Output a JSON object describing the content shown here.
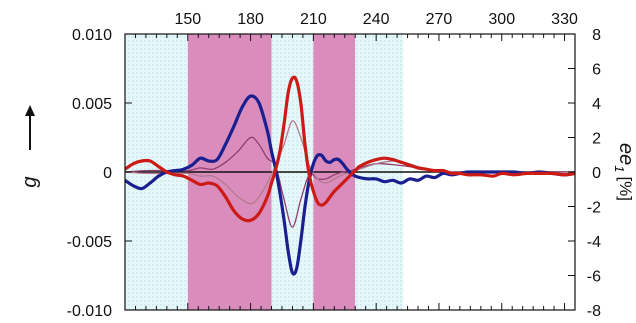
{
  "chart_data": {
    "type": "line",
    "x_axis": {
      "range": [
        120,
        335
      ],
      "ticks": [
        150,
        180,
        210,
        240,
        270,
        300,
        330
      ],
      "tick_labels": [
        "150",
        "180",
        "210",
        "240",
        "270",
        "300",
        "330"
      ],
      "position": "top"
    },
    "y_left": {
      "label": "g",
      "range": [
        -0.01,
        0.01
      ],
      "ticks": [
        -0.01,
        -0.005,
        0,
        0.005,
        0.01
      ],
      "tick_labels": [
        "-0.010",
        "-0.005",
        "0",
        "0.005",
        "0.010"
      ]
    },
    "y_right": {
      "label_main": "ee",
      "label_sub": "1",
      "label_unit": "[%]",
      "range": [
        -8,
        8
      ],
      "ticks": [
        -8,
        -6,
        -4,
        -2,
        0,
        2,
        4,
        6,
        8
      ],
      "tick_labels": [
        "-8",
        "-6",
        "-4",
        "-2",
        "0",
        "2",
        "4",
        "6",
        "8"
      ]
    },
    "shaded_regions": [
      {
        "from": 120,
        "to": 150,
        "color": "#e6f7fa",
        "pattern": "dots"
      },
      {
        "from": 150,
        "to": 190,
        "color": "#da8cbc",
        "pattern": "none"
      },
      {
        "from": 190,
        "to": 210,
        "color": "#e6f7fa",
        "pattern": "dots"
      },
      {
        "from": 210,
        "to": 230,
        "color": "#da8cbc",
        "pattern": "none"
      },
      {
        "from": 230,
        "to": 253,
        "color": "#e6f7fa",
        "pattern": "dots"
      }
    ],
    "legend": "none",
    "grid": false,
    "series": [
      {
        "color": "#1a1f8f",
        "width": 3.2,
        "x": [
          120,
          124,
          128,
          132,
          136,
          140,
          144,
          148,
          152,
          156,
          160,
          164,
          168,
          172,
          176,
          180,
          184,
          188,
          190,
          192,
          194,
          196,
          198,
          200,
          202,
          204,
          206,
          208,
          210,
          212,
          214,
          216,
          218,
          220,
          222,
          224,
          226,
          228,
          230,
          232,
          236,
          240,
          244,
          248,
          252,
          256,
          260,
          264,
          268,
          272,
          276,
          280,
          284,
          290,
          296,
          300,
          306,
          312,
          318,
          324,
          330,
          335
        ],
        "y": [
          -0.0006,
          -0.001,
          -0.0012,
          -0.0008,
          -0.0003,
          0.0,
          0.0001,
          0.0002,
          0.0005,
          0.001,
          0.0008,
          0.0009,
          0.002,
          0.0033,
          0.0047,
          0.0055,
          0.005,
          0.003,
          0.0015,
          0.0002,
          -0.0015,
          -0.0035,
          -0.0058,
          -0.0073,
          -0.007,
          -0.005,
          -0.0025,
          -0.0006,
          0.0006,
          0.0012,
          0.0012,
          0.0008,
          0.0007,
          0.0009,
          0.0009,
          0.0006,
          0.0002,
          -0.0001,
          -0.0003,
          -0.0004,
          -0.0005,
          -0.0005,
          -0.0007,
          -0.0006,
          -0.0008,
          -0.0005,
          -0.0006,
          -0.0003,
          -0.0004,
          -0.0001,
          -0.0002,
          -0.0001,
          0.0,
          0.0,
          0.0,
          0.0,
          0.0,
          -0.0001,
          0.0,
          -0.0001,
          -0.0002,
          -0.0001
        ]
      },
      {
        "color": "#cc1a14",
        "width": 3.2,
        "x": [
          120,
          124,
          128,
          132,
          136,
          140,
          144,
          148,
          152,
          156,
          160,
          164,
          168,
          172,
          176,
          180,
          184,
          188,
          190,
          192,
          194,
          196,
          198,
          200,
          202,
          204,
          206,
          208,
          210,
          212,
          214,
          216,
          218,
          220,
          222,
          224,
          226,
          228,
          230,
          232,
          236,
          240,
          244,
          248,
          252,
          256,
          260,
          264,
          268,
          272,
          276,
          280,
          284,
          290,
          296,
          300,
          306,
          312,
          318,
          324,
          330,
          335
        ],
        "y": [
          0.0002,
          0.0006,
          0.0008,
          0.0008,
          0.0004,
          0.0,
          -0.0002,
          -0.0003,
          -0.0006,
          -0.0009,
          -0.0008,
          -0.001,
          -0.0018,
          -0.0028,
          -0.0034,
          -0.0035,
          -0.003,
          -0.0018,
          -0.0008,
          0.0002,
          0.0015,
          0.0035,
          0.0058,
          0.0068,
          0.0066,
          0.005,
          0.002,
          -0.0002,
          -0.0014,
          -0.0022,
          -0.0024,
          -0.0022,
          -0.0018,
          -0.0014,
          -0.0011,
          -0.0008,
          -0.0005,
          -0.0002,
          0.0001,
          0.0004,
          0.0007,
          0.0009,
          0.001,
          0.0009,
          0.0007,
          0.0005,
          0.0003,
          0.0002,
          0.0001,
          0.0001,
          -0.0001,
          -0.0001,
          -0.0002,
          -0.0002,
          -0.0003,
          -0.0001,
          -0.0002,
          -0.0001,
          -0.0001,
          -0.0001,
          -0.0002,
          -0.0001
        ]
      },
      {
        "color": "#8f3f6e",
        "width": 1.3,
        "x": [
          120,
          130,
          140,
          150,
          156,
          162,
          168,
          174,
          180,
          184,
          188,
          192,
          196,
          200,
          204,
          208,
          212,
          216,
          220,
          224,
          228,
          232,
          240,
          250,
          260,
          270,
          280,
          300,
          320,
          335
        ],
        "y": [
          0.0,
          0.0001,
          0.0001,
          0.0001,
          0.0003,
          0.0002,
          0.0007,
          0.0015,
          0.0025,
          0.002,
          0.001,
          0.0004,
          -0.002,
          -0.004,
          -0.002,
          -0.0002,
          -0.0005,
          -0.0005,
          -0.0002,
          0.0,
          0.0001,
          0.0003,
          0.0006,
          0.0005,
          0.0003,
          0.0001,
          0.0,
          0.0,
          0.0,
          0.0
        ]
      },
      {
        "color": "#b57a8e",
        "width": 1.3,
        "x": [
          120,
          130,
          140,
          150,
          156,
          162,
          168,
          174,
          180,
          184,
          188,
          192,
          196,
          200,
          204,
          208,
          212,
          216,
          220,
          224,
          228,
          232,
          240,
          250,
          260,
          270,
          280,
          300,
          320,
          335
        ],
        "y": [
          0.0,
          -0.0001,
          -0.0001,
          -0.0001,
          -0.0003,
          -0.0003,
          -0.0009,
          -0.0018,
          -0.0023,
          -0.0018,
          -0.0008,
          0.0005,
          0.002,
          0.0037,
          0.0025,
          0.0005,
          -0.0005,
          -0.0008,
          -0.0005,
          -0.0002,
          0.0,
          0.0002,
          0.0006,
          0.0008,
          0.0004,
          0.0001,
          0.0,
          0.0,
          -0.0001,
          0.0
        ]
      }
    ]
  }
}
